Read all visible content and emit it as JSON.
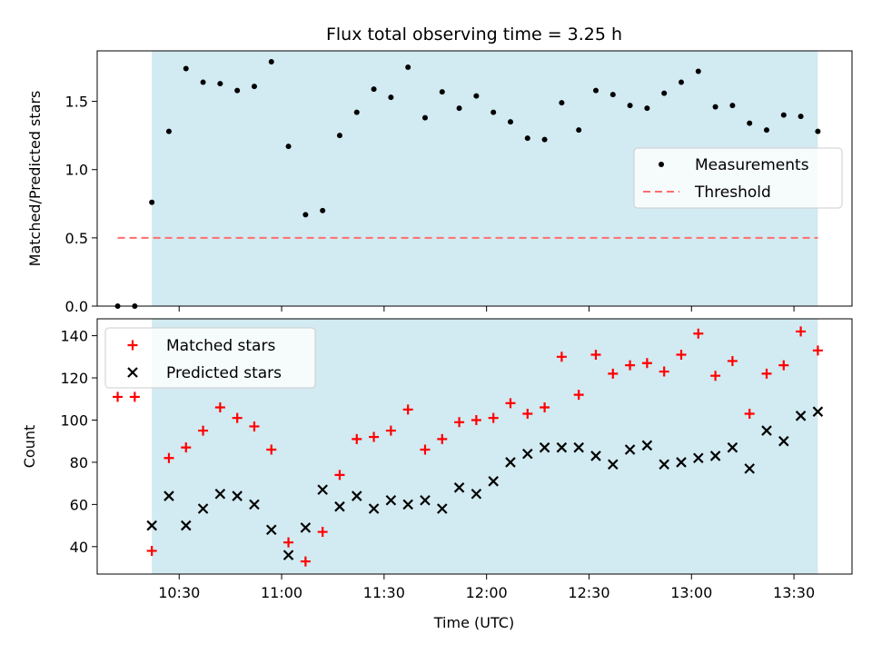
{
  "title": "Flux total observing time = 3.25 h",
  "xlabel": "Time (UTC)",
  "x_ticks": [
    "10:30",
    "11:00",
    "11:30",
    "12:00",
    "12:30",
    "13:00",
    "13:30"
  ],
  "colors": {
    "band": "#add8e6",
    "threshold": "#ff6e6e",
    "matched": "#ff0000",
    "predicted": "#000000",
    "measurements": "#000000"
  },
  "chart_data": [
    {
      "type": "scatter",
      "ylabel": "Matched/Predicted stars",
      "ylim": [
        0,
        1.87
      ],
      "yticks": [
        "0.0",
        "0.5",
        "1.0",
        "1.5"
      ],
      "xlim": [
        "10:06",
        "13:47"
      ],
      "shaded_interval": [
        "10:22",
        "13:37"
      ],
      "threshold": {
        "y": 0.5,
        "x": [
          "10:12",
          "13:37"
        ]
      },
      "legend": {
        "position": "center-right",
        "entries": [
          "Measurements",
          "Threshold"
        ]
      },
      "series": [
        {
          "name": "Measurements",
          "x": [
            "10:12",
            "10:17",
            "10:22",
            "10:27",
            "10:32",
            "10:37",
            "10:42",
            "10:47",
            "10:52",
            "10:57",
            "11:02",
            "11:07",
            "11:12",
            "11:17",
            "11:22",
            "11:27",
            "11:32",
            "11:37",
            "11:42",
            "11:47",
            "11:52",
            "11:57",
            "12:02",
            "12:07",
            "12:12",
            "12:17",
            "12:22",
            "12:27",
            "12:32",
            "12:37",
            "12:42",
            "12:47",
            "12:52",
            "12:57",
            "13:02",
            "13:07",
            "13:12",
            "13:17",
            "13:22",
            "13:27",
            "13:32",
            "13:37"
          ],
          "y": [
            0.0,
            0.0,
            0.76,
            1.28,
            1.74,
            1.64,
            1.63,
            1.58,
            1.61,
            1.79,
            1.17,
            0.67,
            0.7,
            1.25,
            1.42,
            1.59,
            1.53,
            1.75,
            1.38,
            1.57,
            1.45,
            1.54,
            1.42,
            1.35,
            1.23,
            1.22,
            1.49,
            1.29,
            1.58,
            1.55,
            1.47,
            1.45,
            1.56,
            1.64,
            1.72,
            1.46,
            1.47,
            1.34,
            1.29,
            1.4,
            1.39,
            1.28
          ]
        }
      ]
    },
    {
      "type": "scatter",
      "ylabel": "Count",
      "ylim": [
        27,
        148
      ],
      "yticks": [
        "40",
        "60",
        "80",
        "100",
        "120",
        "140"
      ],
      "xlim": [
        "10:06",
        "13:47"
      ],
      "shaded_interval": [
        "10:22",
        "13:37"
      ],
      "legend": {
        "position": "top-left",
        "entries": [
          "Matched stars",
          "Predicted stars"
        ]
      },
      "series": [
        {
          "name": "Matched stars",
          "x": [
            "10:12",
            "10:17",
            "10:22",
            "10:27",
            "10:32",
            "10:37",
            "10:42",
            "10:47",
            "10:52",
            "10:57",
            "11:02",
            "11:07",
            "11:12",
            "11:17",
            "11:22",
            "11:27",
            "11:32",
            "11:37",
            "11:42",
            "11:47",
            "11:52",
            "11:57",
            "12:02",
            "12:07",
            "12:12",
            "12:17",
            "12:22",
            "12:27",
            "12:32",
            "12:37",
            "12:42",
            "12:47",
            "12:52",
            "12:57",
            "13:02",
            "13:07",
            "13:12",
            "13:17",
            "13:22",
            "13:27",
            "13:32",
            "13:37"
          ],
          "y": [
            111,
            111,
            38,
            82,
            87,
            95,
            106,
            101,
            97,
            86,
            42,
            33,
            47,
            74,
            91,
            92,
            95,
            105,
            86,
            91,
            99,
            100,
            101,
            108,
            103,
            106,
            130,
            112,
            131,
            122,
            126,
            127,
            123,
            131,
            141,
            121,
            128,
            103,
            122,
            126,
            142,
            133
          ]
        },
        {
          "name": "Predicted stars",
          "x": [
            "10:22",
            "10:27",
            "10:32",
            "10:37",
            "10:42",
            "10:47",
            "10:52",
            "10:57",
            "11:02",
            "11:07",
            "11:12",
            "11:17",
            "11:22",
            "11:27",
            "11:32",
            "11:37",
            "11:42",
            "11:47",
            "11:52",
            "11:57",
            "12:02",
            "12:07",
            "12:12",
            "12:17",
            "12:22",
            "12:27",
            "12:32",
            "12:37",
            "12:42",
            "12:47",
            "12:52",
            "12:57",
            "13:02",
            "13:07",
            "13:12",
            "13:17",
            "13:22",
            "13:27",
            "13:32",
            "13:37"
          ],
          "y": [
            50,
            64,
            50,
            58,
            65,
            64,
            60,
            48,
            36,
            49,
            67,
            59,
            64,
            58,
            62,
            60,
            62,
            58,
            68,
            65,
            71,
            80,
            84,
            87,
            87,
            87,
            83,
            79,
            86,
            88,
            79,
            80,
            82,
            83,
            87,
            77,
            95,
            90,
            102,
            104
          ]
        }
      ]
    }
  ]
}
